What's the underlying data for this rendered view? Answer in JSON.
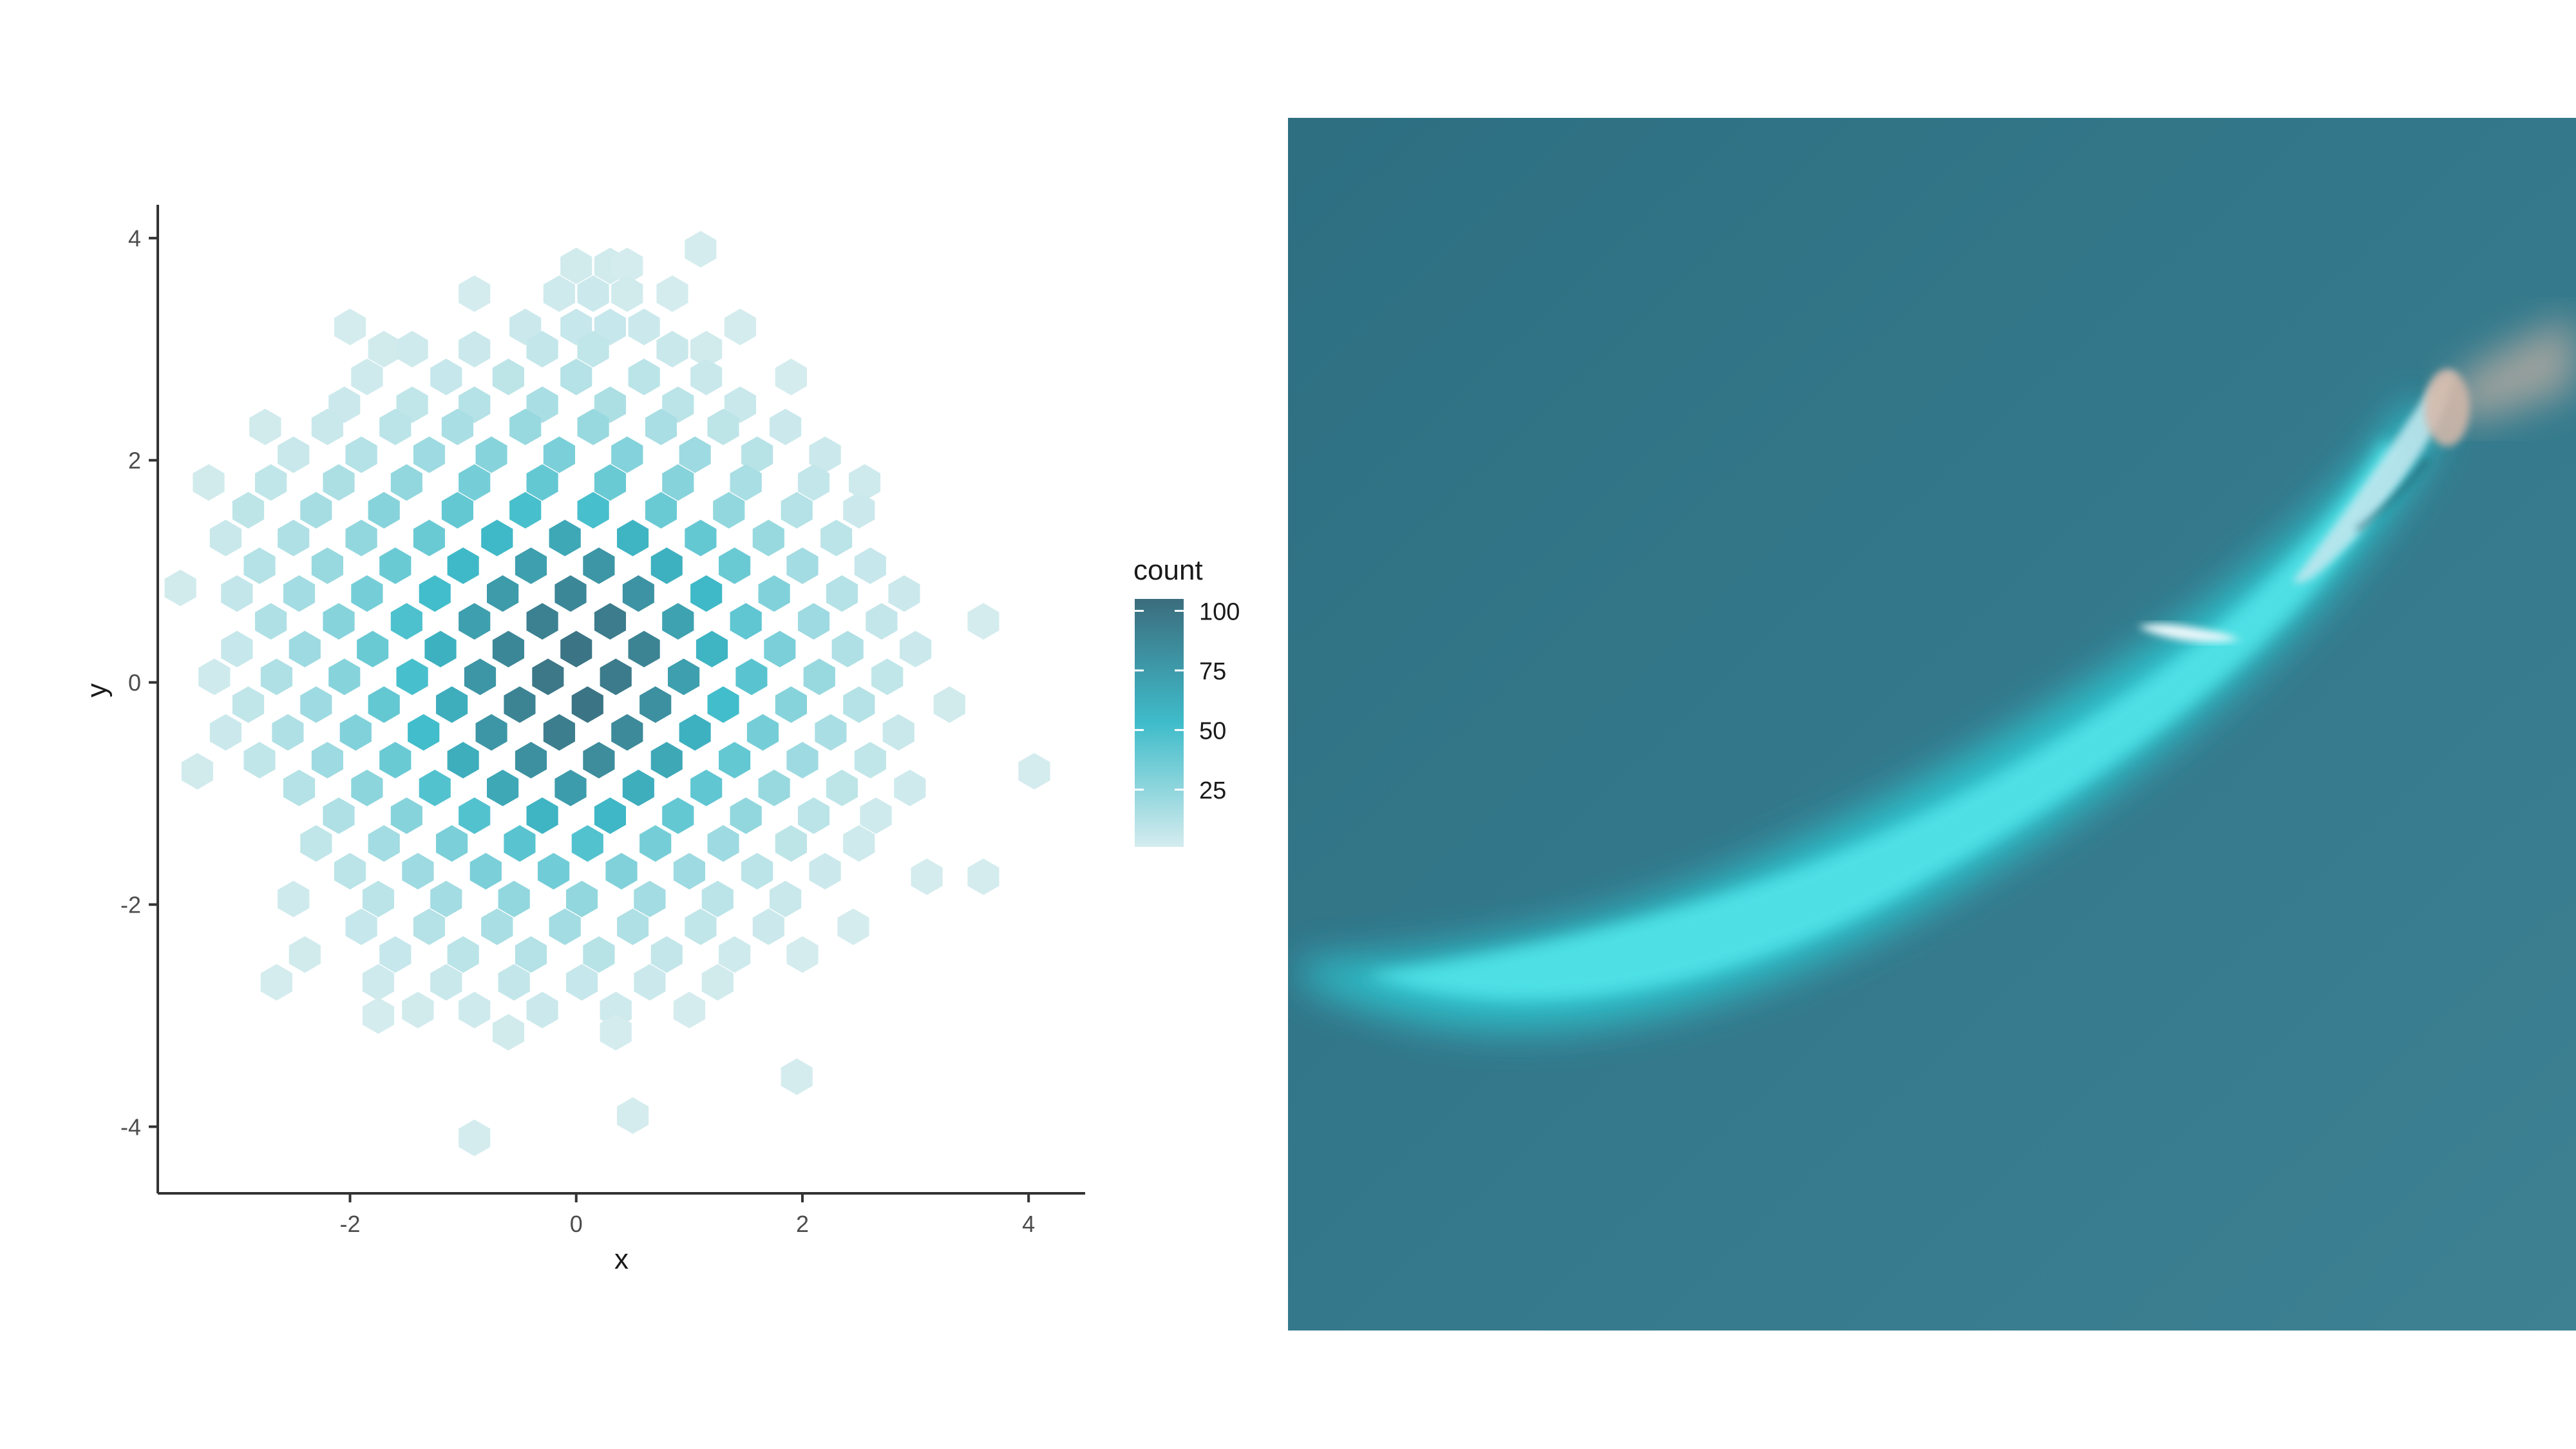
{
  "chart_data": {
    "type": "hexbin",
    "xlabel": "x",
    "ylabel": "y",
    "xlim": [
      -3.7,
      4.5
    ],
    "ylim": [
      -4.6,
      4.3
    ],
    "x_ticks": [
      -2,
      0,
      2,
      4
    ],
    "y_ticks": [
      -4,
      -2,
      0,
      2,
      4
    ],
    "grid": false,
    "legend": {
      "title": "count",
      "position": "right",
      "range": [
        1,
        105
      ],
      "breaks": [
        25,
        50,
        75,
        100
      ],
      "colors": {
        "low": "#d4ecee",
        "mid": "#3fbcca",
        "high": "#3b6d7e"
      }
    },
    "hex_width": 0.28,
    "hexes": [
      [
        1.1,
        3.9,
        1
      ],
      [
        0,
        3.75,
        2
      ],
      [
        0.3,
        3.75,
        2
      ],
      [
        0.45,
        3.75,
        1
      ],
      [
        -0.9,
        3.5,
        1
      ],
      [
        -0.15,
        3.5,
        3
      ],
      [
        0.15,
        3.5,
        4
      ],
      [
        0.45,
        3.5,
        2
      ],
      [
        0.85,
        3.5,
        1
      ],
      [
        -2,
        3.2,
        1
      ],
      [
        -0.45,
        3.2,
        4
      ],
      [
        0,
        3.2,
        6
      ],
      [
        0.3,
        3.2,
        6
      ],
      [
        0.6,
        3.2,
        4
      ],
      [
        1.45,
        3.2,
        1
      ],
      [
        -1.7,
        3.0,
        2
      ],
      [
        -1.45,
        3.0,
        3
      ],
      [
        -0.9,
        3.0,
        4
      ],
      [
        -0.3,
        3.0,
        7
      ],
      [
        0.15,
        3.0,
        8
      ],
      [
        0.85,
        3.0,
        5
      ],
      [
        1.15,
        3.0,
        2
      ],
      [
        -1.85,
        2.75,
        3
      ],
      [
        -1.15,
        2.75,
        6
      ],
      [
        -0.6,
        2.75,
        9
      ],
      [
        0,
        2.75,
        12
      ],
      [
        0.6,
        2.75,
        10
      ],
      [
        1.15,
        2.75,
        5
      ],
      [
        1.9,
        2.75,
        1
      ],
      [
        -2.05,
        2.5,
        4
      ],
      [
        -1.45,
        2.5,
        8
      ],
      [
        -0.9,
        2.5,
        12
      ],
      [
        -0.3,
        2.5,
        16
      ],
      [
        0.3,
        2.5,
        15
      ],
      [
        0.9,
        2.5,
        10
      ],
      [
        1.45,
        2.5,
        5
      ],
      [
        -2.75,
        2.3,
        2
      ],
      [
        -2.2,
        2.3,
        5
      ],
      [
        -1.6,
        2.3,
        10
      ],
      [
        -1.05,
        2.3,
        16
      ],
      [
        -0.45,
        2.3,
        22
      ],
      [
        0.15,
        2.3,
        22
      ],
      [
        0.75,
        2.3,
        16
      ],
      [
        1.3,
        2.3,
        9
      ],
      [
        1.85,
        2.3,
        4
      ],
      [
        -2.5,
        2.05,
        5
      ],
      [
        -1.9,
        2.05,
        12
      ],
      [
        -1.3,
        2.05,
        20
      ],
      [
        -0.75,
        2.05,
        28
      ],
      [
        -0.15,
        2.05,
        32
      ],
      [
        0.45,
        2.05,
        29
      ],
      [
        1.05,
        2.05,
        20
      ],
      [
        1.6,
        2.05,
        11
      ],
      [
        2.2,
        2.05,
        4
      ],
      [
        -3.25,
        1.8,
        2
      ],
      [
        -2.7,
        1.8,
        8
      ],
      [
        -2.1,
        1.8,
        15
      ],
      [
        -1.5,
        1.8,
        24
      ],
      [
        -0.9,
        1.8,
        34
      ],
      [
        -0.3,
        1.8,
        40
      ],
      [
        0.3,
        1.8,
        38
      ],
      [
        0.9,
        1.8,
        28
      ],
      [
        1.5,
        1.8,
        16
      ],
      [
        2.1,
        1.8,
        7
      ],
      [
        2.55,
        1.8,
        3
      ],
      [
        -2.9,
        1.55,
        9
      ],
      [
        -2.3,
        1.55,
        17
      ],
      [
        -1.7,
        1.55,
        28
      ],
      [
        -1.05,
        1.55,
        40
      ],
      [
        -0.45,
        1.55,
        50
      ],
      [
        0.15,
        1.55,
        50
      ],
      [
        0.75,
        1.55,
        38
      ],
      [
        1.35,
        1.55,
        24
      ],
      [
        1.95,
        1.55,
        12
      ],
      [
        2.5,
        1.55,
        4
      ],
      [
        -3.1,
        1.3,
        5
      ],
      [
        -2.5,
        1.3,
        14
      ],
      [
        -1.9,
        1.3,
        24
      ],
      [
        -1.3,
        1.3,
        38
      ],
      [
        -0.7,
        1.3,
        55
      ],
      [
        -0.1,
        1.3,
        66
      ],
      [
        0.5,
        1.3,
        58
      ],
      [
        1.1,
        1.3,
        40
      ],
      [
        1.7,
        1.3,
        22
      ],
      [
        2.3,
        1.3,
        10
      ],
      [
        -2.8,
        1.05,
        12
      ],
      [
        -2.2,
        1.05,
        22
      ],
      [
        -1.6,
        1.05,
        38
      ],
      [
        -1.0,
        1.05,
        55
      ],
      [
        -0.4,
        1.05,
        72
      ],
      [
        0.2,
        1.05,
        78
      ],
      [
        0.8,
        1.05,
        60
      ],
      [
        1.4,
        1.05,
        38
      ],
      [
        2.0,
        1.05,
        18
      ],
      [
        2.6,
        1.05,
        6
      ],
      [
        -3.5,
        0.85,
        2
      ],
      [
        -3.0,
        0.8,
        7
      ],
      [
        -2.45,
        0.8,
        18
      ],
      [
        -1.85,
        0.8,
        34
      ],
      [
        -1.25,
        0.8,
        52
      ],
      [
        -0.65,
        0.8,
        75
      ],
      [
        -0.05,
        0.8,
        88
      ],
      [
        0.55,
        0.8,
        80
      ],
      [
        1.15,
        0.8,
        55
      ],
      [
        1.75,
        0.8,
        30
      ],
      [
        2.35,
        0.8,
        12
      ],
      [
        2.9,
        0.8,
        4
      ],
      [
        -2.7,
        0.55,
        14
      ],
      [
        -2.1,
        0.55,
        28
      ],
      [
        -1.5,
        0.55,
        48
      ],
      [
        -0.9,
        0.55,
        72
      ],
      [
        -0.3,
        0.55,
        92
      ],
      [
        0.3,
        0.55,
        95
      ],
      [
        0.9,
        0.55,
        70
      ],
      [
        1.5,
        0.55,
        42
      ],
      [
        2.1,
        0.55,
        20
      ],
      [
        2.7,
        0.55,
        7
      ],
      [
        3.6,
        0.55,
        1
      ],
      [
        -3.0,
        0.3,
        6
      ],
      [
        -2.4,
        0.3,
        20
      ],
      [
        -1.8,
        0.3,
        38
      ],
      [
        -1.2,
        0.3,
        60
      ],
      [
        -0.6,
        0.3,
        88
      ],
      [
        0,
        0.3,
        100
      ],
      [
        0.6,
        0.3,
        90
      ],
      [
        1.2,
        0.3,
        58
      ],
      [
        1.8,
        0.3,
        32
      ],
      [
        2.4,
        0.3,
        14
      ],
      [
        3.0,
        0.3,
        4
      ],
      [
        -3.2,
        0.05,
        3
      ],
      [
        -2.65,
        0.05,
        14
      ],
      [
        -2.05,
        0.05,
        28
      ],
      [
        -1.45,
        0.05,
        50
      ],
      [
        -0.85,
        0.05,
        78
      ],
      [
        -0.25,
        0.05,
        98
      ],
      [
        0.35,
        0.05,
        96
      ],
      [
        0.95,
        0.05,
        72
      ],
      [
        1.55,
        0.05,
        44
      ],
      [
        2.15,
        0.05,
        22
      ],
      [
        2.75,
        0.05,
        8
      ],
      [
        -2.9,
        -0.2,
        8
      ],
      [
        -2.3,
        -0.2,
        20
      ],
      [
        -1.7,
        -0.2,
        40
      ],
      [
        -1.1,
        -0.2,
        62
      ],
      [
        -0.5,
        -0.2,
        90
      ],
      [
        0.1,
        -0.2,
        100
      ],
      [
        0.7,
        -0.2,
        82
      ],
      [
        1.3,
        -0.2,
        52
      ],
      [
        1.9,
        -0.2,
        28
      ],
      [
        2.5,
        -0.2,
        12
      ],
      [
        3.3,
        -0.2,
        2
      ],
      [
        -3.1,
        -0.45,
        4
      ],
      [
        -2.55,
        -0.45,
        14
      ],
      [
        -1.95,
        -0.45,
        30
      ],
      [
        -1.35,
        -0.45,
        52
      ],
      [
        -0.75,
        -0.45,
        78
      ],
      [
        -0.15,
        -0.45,
        94
      ],
      [
        0.45,
        -0.45,
        86
      ],
      [
        1.05,
        -0.45,
        60
      ],
      [
        1.65,
        -0.45,
        34
      ],
      [
        2.25,
        -0.45,
        16
      ],
      [
        2.85,
        -0.45,
        5
      ],
      [
        -2.8,
        -0.7,
        8
      ],
      [
        -2.2,
        -0.7,
        20
      ],
      [
        -1.6,
        -0.7,
        38
      ],
      [
        -1.0,
        -0.7,
        62
      ],
      [
        -0.4,
        -0.7,
        82
      ],
      [
        0.2,
        -0.7,
        84
      ],
      [
        0.8,
        -0.7,
        66
      ],
      [
        1.4,
        -0.7,
        40
      ],
      [
        2.0,
        -0.7,
        20
      ],
      [
        2.6,
        -0.7,
        8
      ],
      [
        -3.35,
        -0.8,
        2
      ],
      [
        -2.45,
        -0.95,
        12
      ],
      [
        -1.85,
        -0.95,
        26
      ],
      [
        -1.25,
        -0.95,
        46
      ],
      [
        -0.65,
        -0.95,
        66
      ],
      [
        -0.05,
        -0.95,
        74
      ],
      [
        0.55,
        -0.95,
        62
      ],
      [
        1.15,
        -0.95,
        42
      ],
      [
        1.75,
        -0.95,
        22
      ],
      [
        2.35,
        -0.95,
        9
      ],
      [
        2.95,
        -0.95,
        3
      ],
      [
        4.05,
        -0.8,
        1
      ],
      [
        -2.1,
        -1.2,
        14
      ],
      [
        -1.5,
        -1.2,
        28
      ],
      [
        -0.9,
        -1.2,
        46
      ],
      [
        -0.3,
        -1.2,
        58
      ],
      [
        0.3,
        -1.2,
        56
      ],
      [
        0.9,
        -1.2,
        40
      ],
      [
        1.5,
        -1.2,
        24
      ],
      [
        2.1,
        -1.2,
        10
      ],
      [
        2.65,
        -1.2,
        3
      ],
      [
        -2.3,
        -1.45,
        8
      ],
      [
        -1.7,
        -1.45,
        18
      ],
      [
        -1.1,
        -1.45,
        32
      ],
      [
        -0.5,
        -1.45,
        44
      ],
      [
        0.1,
        -1.45,
        46
      ],
      [
        0.7,
        -1.45,
        34
      ],
      [
        1.3,
        -1.45,
        20
      ],
      [
        1.9,
        -1.45,
        9
      ],
      [
        2.5,
        -1.45,
        3
      ],
      [
        -2.0,
        -1.7,
        10
      ],
      [
        -1.4,
        -1.7,
        20
      ],
      [
        -0.8,
        -1.7,
        32
      ],
      [
        -0.2,
        -1.7,
        36
      ],
      [
        0.4,
        -1.7,
        30
      ],
      [
        1.0,
        -1.7,
        20
      ],
      [
        1.6,
        -1.7,
        10
      ],
      [
        2.2,
        -1.7,
        4
      ],
      [
        3.1,
        -1.75,
        1
      ],
      [
        3.6,
        -1.75,
        1
      ],
      [
        -2.5,
        -1.95,
        3
      ],
      [
        -1.75,
        -1.95,
        10
      ],
      [
        -1.15,
        -1.95,
        18
      ],
      [
        -0.55,
        -1.95,
        24
      ],
      [
        0.05,
        -1.95,
        24
      ],
      [
        0.65,
        -1.95,
        18
      ],
      [
        1.25,
        -1.95,
        10
      ],
      [
        1.85,
        -1.95,
        5
      ],
      [
        -1.9,
        -2.2,
        6
      ],
      [
        -1.3,
        -2.2,
        12
      ],
      [
        -0.7,
        -2.2,
        16
      ],
      [
        -0.1,
        -2.2,
        18
      ],
      [
        0.5,
        -2.2,
        14
      ],
      [
        1.1,
        -2.2,
        8
      ],
      [
        1.7,
        -2.2,
        4
      ],
      [
        2.45,
        -2.2,
        1
      ],
      [
        -2.4,
        -2.45,
        2
      ],
      [
        -1.6,
        -2.45,
        6
      ],
      [
        -1.0,
        -2.45,
        10
      ],
      [
        -0.4,
        -2.45,
        12
      ],
      [
        0.2,
        -2.45,
        11
      ],
      [
        0.8,
        -2.45,
        7
      ],
      [
        1.4,
        -2.45,
        3
      ],
      [
        2.0,
        -2.45,
        1
      ],
      [
        -2.65,
        -2.7,
        1
      ],
      [
        -1.75,
        -2.7,
        3
      ],
      [
        -1.15,
        -2.7,
        5
      ],
      [
        -0.55,
        -2.7,
        7
      ],
      [
        0.05,
        -2.7,
        6
      ],
      [
        0.65,
        -2.7,
        4
      ],
      [
        1.25,
        -2.7,
        2
      ],
      [
        -1.4,
        -2.95,
        2
      ],
      [
        -0.9,
        -2.95,
        3
      ],
      [
        -0.3,
        -2.95,
        4
      ],
      [
        0.35,
        -2.95,
        3
      ],
      [
        1.0,
        -2.95,
        1
      ],
      [
        -1.75,
        -3.0,
        1
      ],
      [
        -0.6,
        -3.15,
        2
      ],
      [
        0.35,
        -3.15,
        1
      ],
      [
        1.95,
        -3.55,
        1
      ],
      [
        0.5,
        -3.9,
        1
      ],
      [
        -0.9,
        -4.1,
        1
      ]
    ]
  },
  "photo": {
    "description_icon": "whale-photo",
    "colors": {
      "water": "#3a7a8a",
      "water_dark": "#2f6d80",
      "whale": "#2fd0d8"
    }
  }
}
